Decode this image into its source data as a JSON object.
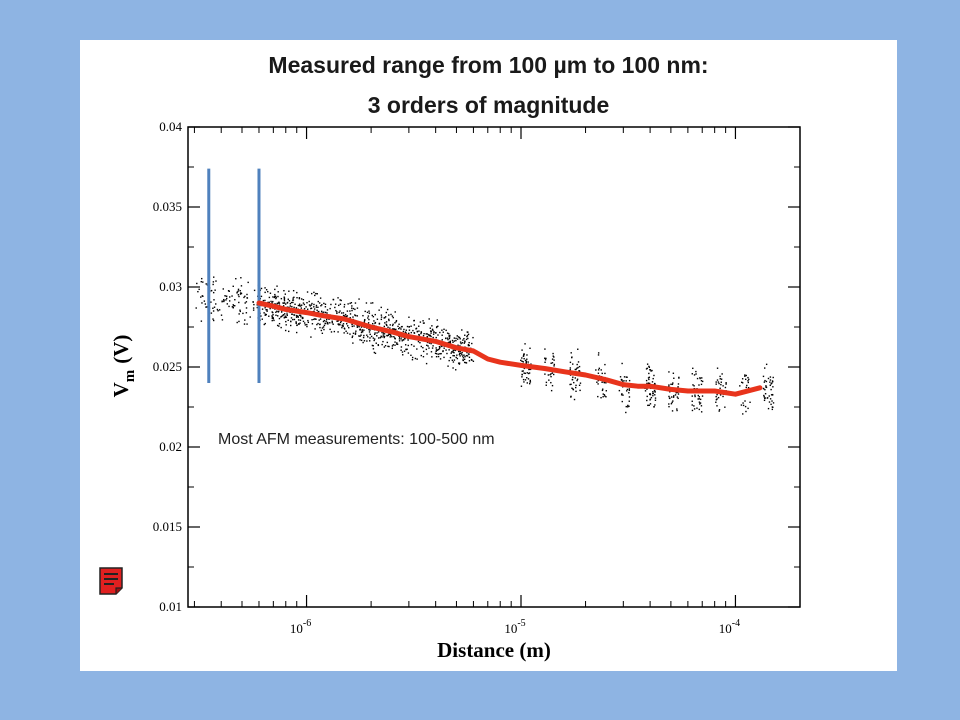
{
  "slide": {
    "title_line1": "Measured range from 100 µm to 100 nm:",
    "title_line2": "3 orders of magnitude"
  },
  "chart_data": {
    "type": "scatter",
    "xlabel": "Distance (m)",
    "ylabel_main": "V",
    "ylabel_sub": "m",
    "ylabel_unit": "(V)",
    "x_scale": "log",
    "xlim": [
      2.8e-07,
      0.0002
    ],
    "ylim": [
      0.01,
      0.04
    ],
    "y_ticks": [
      "0.01",
      "0.015",
      "0.02",
      "0.025",
      "0.03",
      "0.035",
      "0.04"
    ],
    "x_ticks": [
      {
        "base": "10",
        "exp": "-6",
        "value": 1e-06
      },
      {
        "base": "10",
        "exp": "-5",
        "value": 1e-05
      },
      {
        "base": "10",
        "exp": "-4",
        "value": 0.0001
      }
    ],
    "annotation": "Most AFM measurements: 100-500 nm",
    "marker_lines_x": [
      3.5e-07,
      6e-07
    ],
    "marker_lines_y": [
      0.024,
      0.0374
    ],
    "fit_series": {
      "color": "#e8341c",
      "x": [
        6e-07,
        7e-07,
        8e-07,
        1e-06,
        1.2e-06,
        1.5e-06,
        2e-06,
        2.5e-06,
        3e-06,
        4e-06,
        5e-06,
        6e-06,
        7e-06,
        8e-06,
        1e-05,
        1.3e-05,
        1.6e-05,
        2e-05,
        2.5e-05,
        3e-05,
        3.5e-05,
        4e-05,
        5e-05,
        6e-05,
        7e-05,
        8e-05,
        0.0001,
        0.00013
      ],
      "y": [
        0.029,
        0.0288,
        0.0286,
        0.0284,
        0.0282,
        0.028,
        0.0275,
        0.0272,
        0.0269,
        0.0266,
        0.0262,
        0.026,
        0.0255,
        0.0253,
        0.0251,
        0.0249,
        0.0247,
        0.0245,
        0.0242,
        0.0239,
        0.0238,
        0.0238,
        0.0236,
        0.0235,
        0.0235,
        0.0235,
        0.0233,
        0.0237
      ]
    },
    "scatter_series": {
      "color": "#000000",
      "description_clusters": [
        {
          "x_from": 3e-07,
          "x_to": 6e-07,
          "y_center": 0.0285,
          "y_spread": 0.002,
          "count": 120
        },
        {
          "x_from": 6e-07,
          "x_to": 6e-06,
          "y_center": 0.0275,
          "y_spread": 0.0018,
          "count": 900
        },
        {
          "x_from": 8e-06,
          "x_to": 0.0002,
          "y_center": 0.024,
          "y_spread": 0.002,
          "count": 450
        }
      ]
    }
  },
  "notes_icon": "document-icon"
}
